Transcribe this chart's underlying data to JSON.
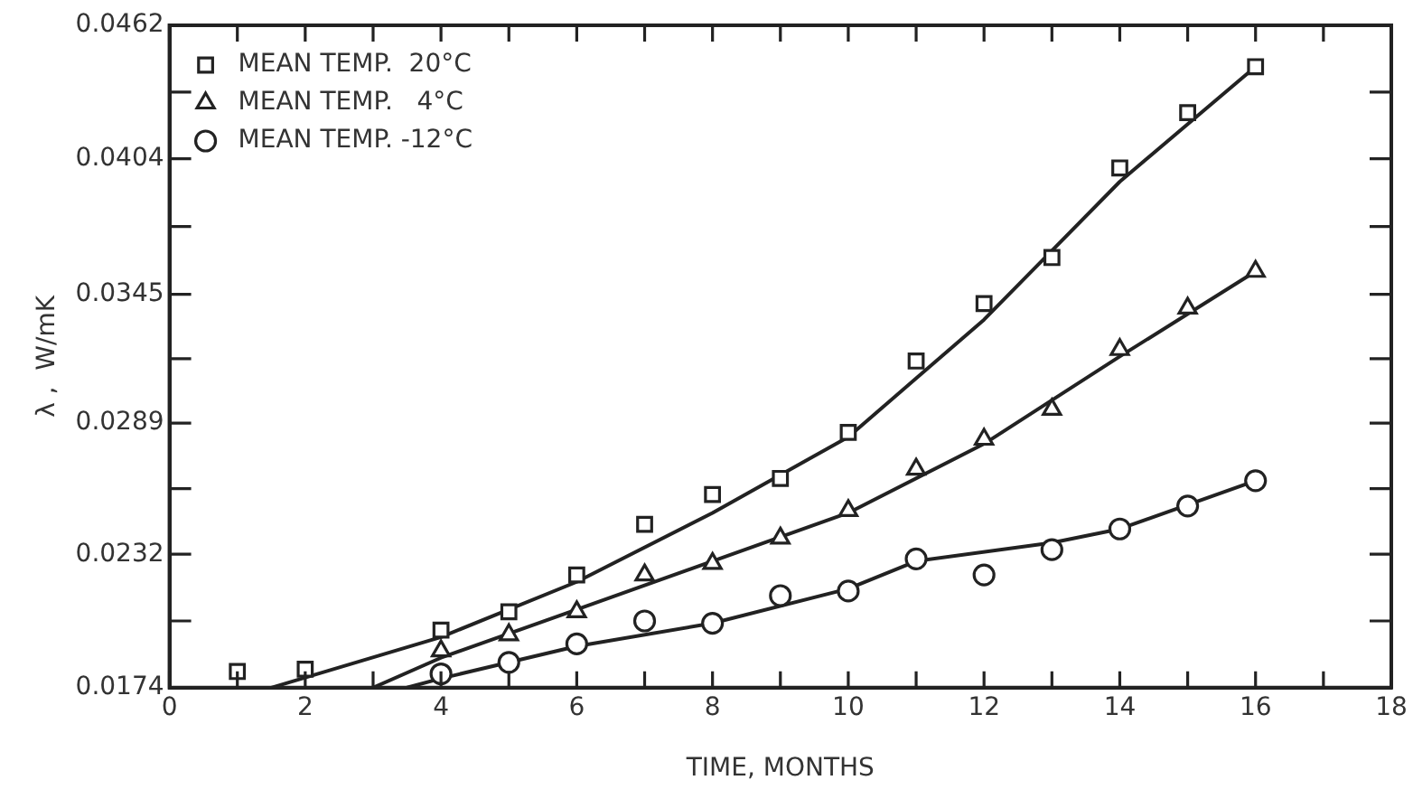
{
  "chart_data": {
    "type": "scatter",
    "xlabel": "TIME, MONTHS",
    "ylabel": "λ ,  W/mK",
    "xlim": [
      0,
      18
    ],
    "ylim": [
      0.0174,
      0.0462
    ],
    "xticks": [
      0,
      {
        "value": 1,
        "label": null
      },
      2,
      {
        "value": 3,
        "label": null
      },
      4,
      {
        "value": 5,
        "label": null
      },
      6,
      {
        "value": 7,
        "label": null
      },
      8,
      {
        "value": 9,
        "label": null
      },
      10,
      {
        "value": 11,
        "label": null
      },
      12,
      {
        "value": 13,
        "label": null
      },
      14,
      {
        "value": 15,
        "label": null
      },
      16,
      {
        "value": 17,
        "label": null
      },
      18
    ],
    "yticks": [
      0.0174,
      {
        "value": 0.0203,
        "label": null
      },
      0.0232,
      {
        "value": 0.02605,
        "label": null
      },
      0.0289,
      {
        "value": 0.0317,
        "label": null
      },
      0.0345,
      {
        "value": 0.03745,
        "label": null
      },
      0.0404,
      {
        "value": 0.0433,
        "label": null
      },
      0.0462
    ],
    "grid": false,
    "legend": "top left",
    "series": [
      {
        "name": "MEAN TEMP.  20°C",
        "color": "#222222",
        "marker": "square",
        "x": [
          1,
          2,
          4,
          5,
          6,
          7,
          8,
          9,
          10,
          11,
          12,
          13,
          14,
          15,
          16
        ],
        "values": [
          0.0181,
          0.0182,
          0.0199,
          0.0207,
          0.0223,
          0.0245,
          0.0258,
          0.0265,
          0.0285,
          0.0316,
          0.0341,
          0.0361,
          0.04,
          0.0424,
          0.0444
        ]
      },
      {
        "name": "MEAN TEMP.   4°C",
        "color": "#222222",
        "marker": "triangle",
        "x": [
          4,
          5,
          6,
          7,
          8,
          9,
          10,
          11,
          12,
          13,
          14,
          15,
          16
        ],
        "values": [
          0.019,
          0.0197,
          0.0207,
          0.0223,
          0.0228,
          0.0239,
          0.0251,
          0.0269,
          0.0282,
          0.0295,
          0.0321,
          0.0339,
          0.0355
        ]
      },
      {
        "name": "MEAN TEMP. -12°C",
        "color": "#222222",
        "marker": "circle",
        "x": [
          4,
          5,
          6,
          7,
          8,
          9,
          10,
          11,
          12,
          13,
          14,
          15,
          16
        ],
        "values": [
          0.018,
          0.0185,
          0.0193,
          0.0203,
          0.0202,
          0.0214,
          0.0216,
          0.023,
          0.0223,
          0.0234,
          0.0243,
          0.0253,
          0.0264
        ]
      },
      {
        "type": "line",
        "color": "#222222",
        "marker": "none",
        "x": [
          1.5,
          4,
          6,
          8,
          10,
          12,
          14,
          16
        ],
        "values": [
          0.0174,
          0.0196,
          0.022,
          0.025,
          0.0283,
          0.0334,
          0.0394,
          0.0444
        ]
      },
      {
        "type": "line",
        "color": "#222222",
        "marker": "none",
        "x": [
          3,
          4,
          6,
          8,
          10,
          12,
          14,
          16
        ],
        "values": [
          0.0174,
          0.0187,
          0.0208,
          0.0229,
          0.025,
          0.028,
          0.0318,
          0.0355
        ]
      },
      {
        "type": "line",
        "color": "#222222",
        "marker": "none",
        "x": [
          3.5,
          4,
          6,
          8,
          10,
          11,
          13,
          14,
          16
        ],
        "values": [
          0.0174,
          0.0178,
          0.0192,
          0.0202,
          0.0217,
          0.0229,
          0.0237,
          0.0243,
          0.0264
        ]
      }
    ]
  }
}
